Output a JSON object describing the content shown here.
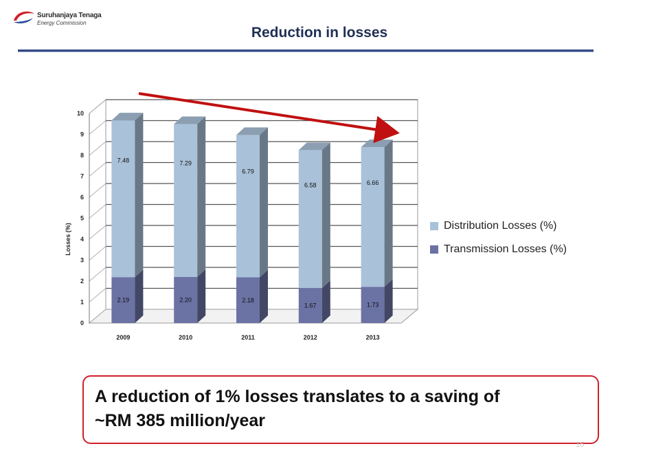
{
  "header": {
    "logo_name": "Suruhanjaya Tenaga",
    "logo_sub": "Energy Commission",
    "title": "Reduction in losses"
  },
  "chart_data": {
    "type": "bar",
    "stacked": true,
    "three_d": true,
    "categories": [
      "2009",
      "2010",
      "2011",
      "2012",
      "2013"
    ],
    "series": [
      {
        "name": "Transmission Losses (%)",
        "values": [
          2.19,
          2.2,
          2.18,
          1.67,
          1.73
        ],
        "labels": [
          "2.19",
          "2.20",
          "2.18",
          "1.67",
          "1.73"
        ],
        "color": "#6b72a4"
      },
      {
        "name": "Distribution Losses (%)",
        "values": [
          7.48,
          7.29,
          6.79,
          6.58,
          6.66
        ],
        "labels": [
          "7.48",
          "7.29",
          "6.79",
          "6.58",
          "6.66"
        ],
        "color": "#a9c1d9"
      }
    ],
    "ylabel": "Losses (%)",
    "ylim": [
      0,
      10
    ],
    "yticks": [
      "0",
      "1",
      "2",
      "3",
      "4",
      "5",
      "6",
      "7",
      "8",
      "9",
      "10"
    ],
    "grid": true,
    "legend": "right",
    "annotation": "downward trend arrow",
    "arrow_color": "#c01010"
  },
  "callout": {
    "line1": "A reduction of 1% losses translates to a saving of",
    "line2": "~RM 385 million/year"
  },
  "page_number": "16"
}
